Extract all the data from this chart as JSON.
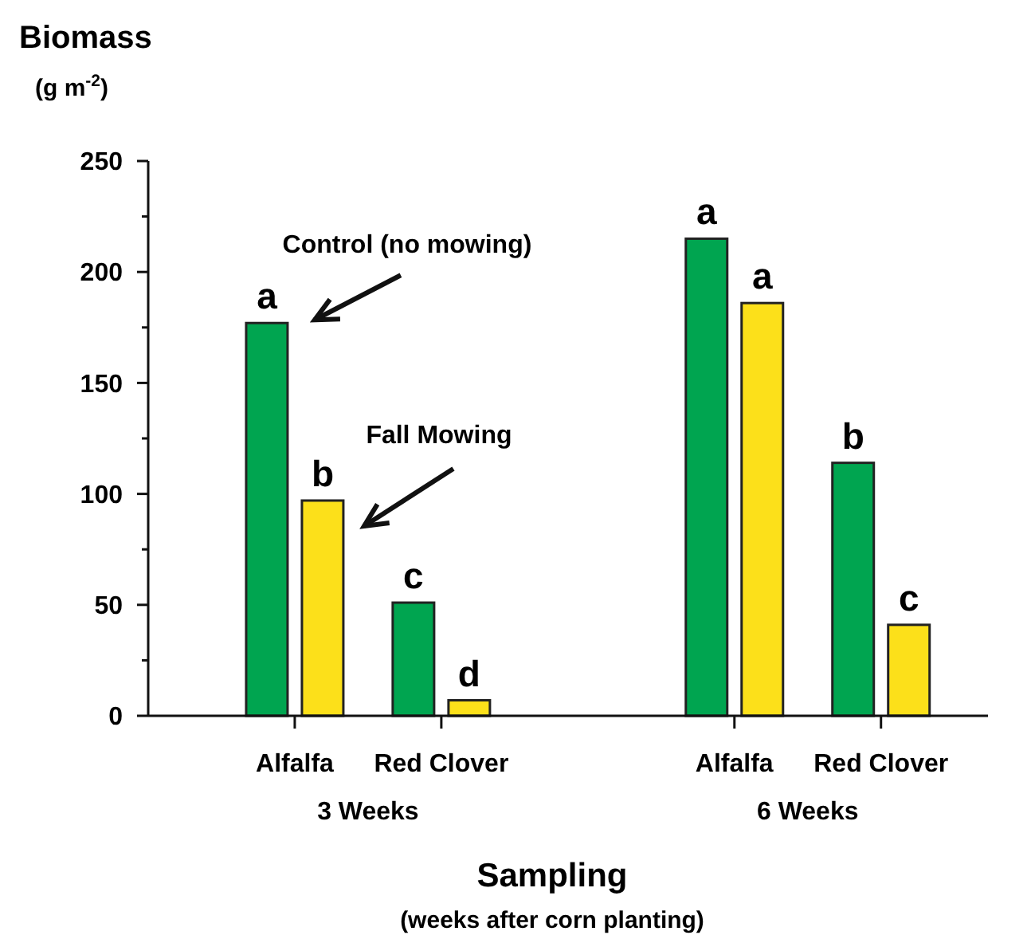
{
  "chart_data": {
    "type": "bar",
    "ylabel": "Biomass\n(g m$^{-2}$)",
    "xlabel": "Sampling\n(weeks after corn planting)",
    "categories": [
      "Alfalfa",
      "Red Clover",
      null,
      "Alfalfa",
      "Red Clover"
    ],
    "series": [
      {
        "name": "Control (no mowing)",
        "color": "#00a550",
        "values": [
          177,
          51,
          null,
          215,
          114
        ],
        "value_labels": [
          "a",
          "c",
          null,
          "a",
          "b"
        ]
      },
      {
        "name": "Fall Mowing",
        "color": "#fce01a",
        "values": [
          97,
          7,
          null,
          186,
          41
        ],
        "value_labels": [
          "b",
          "d",
          null,
          "a",
          "c"
        ]
      }
    ],
    "ylim": [
      0,
      250
    ],
    "yticks": [
      0,
      {
        "value": 25,
        "label": null
      },
      50,
      {
        "value": 75,
        "label": null
      },
      100,
      {
        "value": 125,
        "label": null
      },
      150,
      {
        "value": 175,
        "label": null
      },
      200,
      {
        "value": 225,
        "label": null
      },
      250
    ],
    "annotations": [
      "3 Weeks",
      "6 Weeks"
    ],
    "grid": false
  }
}
